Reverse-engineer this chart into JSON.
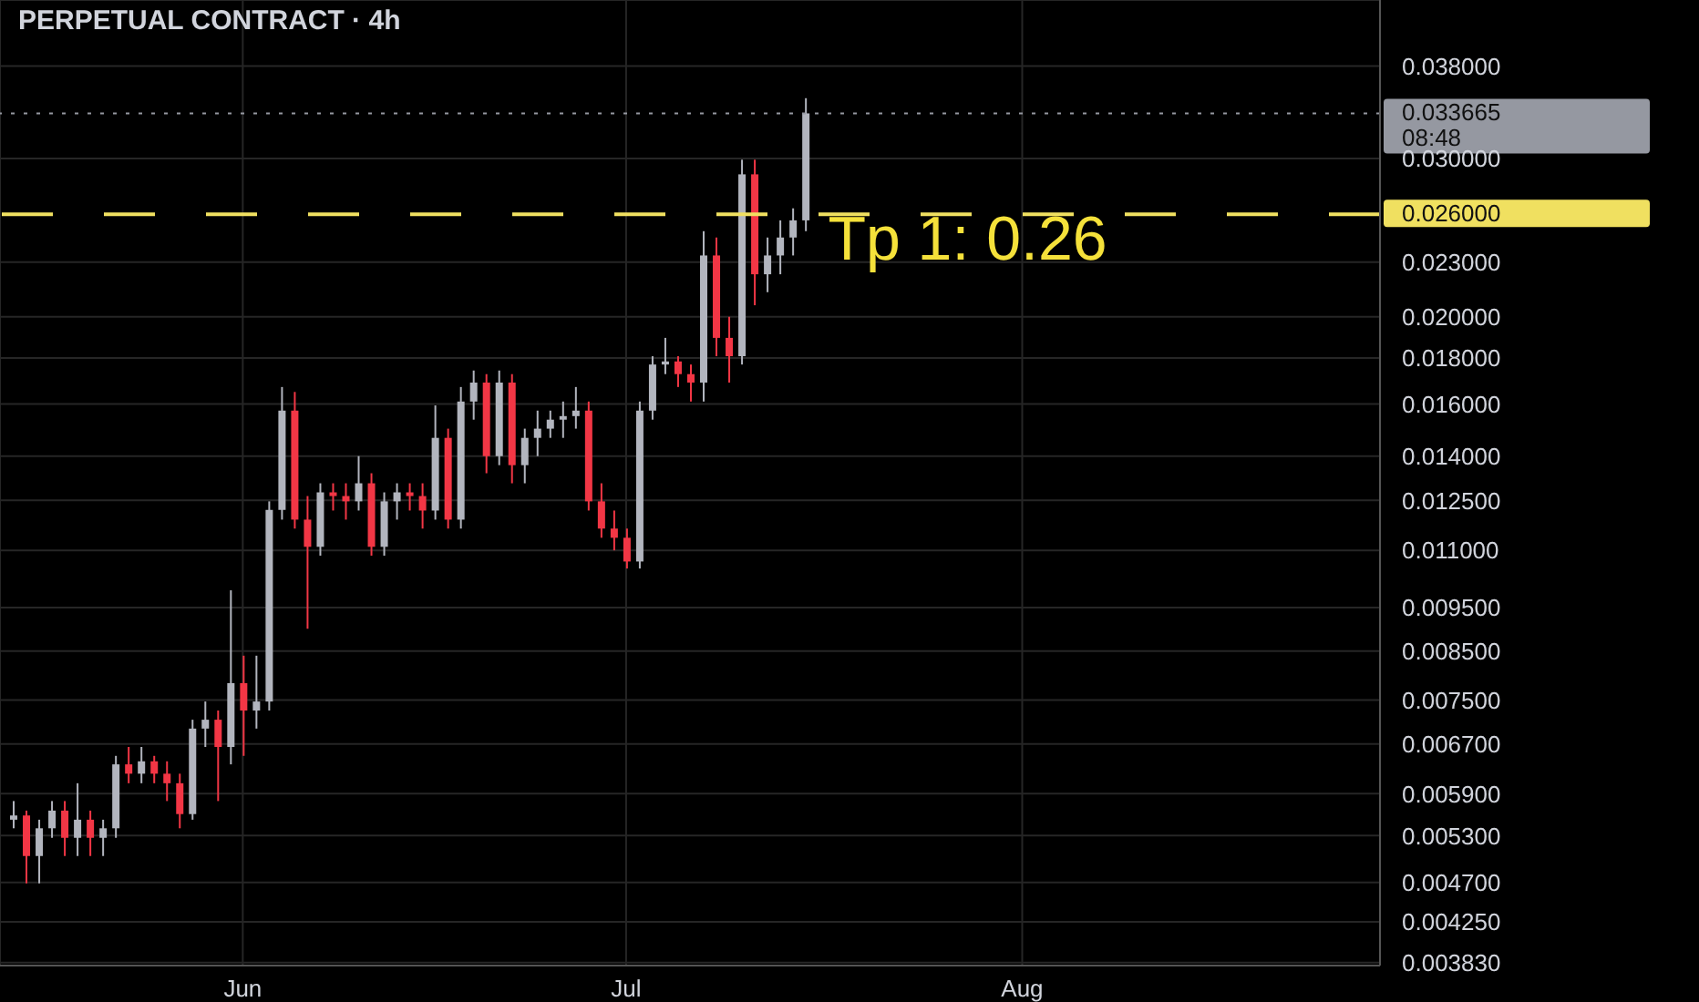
{
  "chart_data": {
    "type": "candlestick",
    "title": "PERPETUAL CONTRACT · 4h",
    "x": [
      "--05-14",
      "--05-15",
      "--05-16",
      "--05-17",
      "--05-18",
      "--05-19",
      "--05-20",
      "--05-21",
      "--05-22",
      "--05-23",
      "--05-24",
      "--05-25",
      "--05-26",
      "--05-27",
      "--05-28",
      "--05-29",
      "--05-30",
      "--05-31",
      "--06-01",
      "--06-02",
      "--06-03",
      "--06-04",
      "--06-05",
      "--06-06",
      "--06-07",
      "--06-08",
      "--06-09",
      "--06-10",
      "--06-11",
      "--06-12",
      "--06-13",
      "--06-14",
      "--06-15",
      "--06-16",
      "--06-17",
      "--06-18",
      "--06-19",
      "--06-20",
      "--06-21",
      "--06-22",
      "--06-23",
      "--06-24",
      "--06-25",
      "--06-26",
      "--06-27",
      "--06-28",
      "--06-29",
      "--06-30",
      "--07-01",
      "--07-02",
      "--07-03",
      "--07-04",
      "--07-05",
      "--07-06",
      "--07-07",
      "--07-08",
      "--07-09",
      "--07-10",
      "--07-11",
      "--07-12",
      "--07-13",
      "--07-14",
      "--07-15"
    ],
    "ohlc": [
      [
        0.00552,
        0.00579,
        0.0054,
        0.00558
      ],
      [
        0.00558,
        0.00565,
        0.00469,
        0.00503
      ],
      [
        0.00503,
        0.00552,
        0.00469,
        0.0054
      ],
      [
        0.0054,
        0.00579,
        0.00527,
        0.00565
      ],
      [
        0.00565,
        0.00579,
        0.00503,
        0.00527
      ],
      [
        0.00527,
        0.00606,
        0.00503,
        0.00552
      ],
      [
        0.00552,
        0.00565,
        0.00503,
        0.00527
      ],
      [
        0.00527,
        0.00552,
        0.00503,
        0.0054
      ],
      [
        0.0054,
        0.0065,
        0.00527,
        0.00636
      ],
      [
        0.00636,
        0.00665,
        0.00606,
        0.00621
      ],
      [
        0.00621,
        0.00665,
        0.00606,
        0.00641
      ],
      [
        0.00641,
        0.0065,
        0.00606,
        0.00621
      ],
      [
        0.00621,
        0.00641,
        0.00579,
        0.00606
      ],
      [
        0.00606,
        0.00621,
        0.0054,
        0.0056
      ],
      [
        0.0056,
        0.00713,
        0.00552,
        0.00697
      ],
      [
        0.00697,
        0.00747,
        0.00665,
        0.00713
      ],
      [
        0.00713,
        0.0073,
        0.00579,
        0.00665
      ],
      [
        0.00665,
        0.00993,
        0.00636,
        0.00783
      ],
      [
        0.00783,
        0.0084,
        0.0065,
        0.0073
      ],
      [
        0.0073,
        0.0084,
        0.00697,
        0.00747
      ],
      [
        0.00747,
        0.01247,
        0.0073,
        0.0122
      ],
      [
        0.0122,
        0.01671,
        0.0119,
        0.01573
      ],
      [
        0.01573,
        0.0165,
        0.01163,
        0.0119
      ],
      [
        0.0119,
        0.01264,
        0.009,
        0.0111
      ],
      [
        0.0111,
        0.01306,
        0.01085,
        0.01276
      ],
      [
        0.01276,
        0.01306,
        0.01218,
        0.01264
      ],
      [
        0.01264,
        0.01306,
        0.0119,
        0.01247
      ],
      [
        0.01247,
        0.014,
        0.01218,
        0.01306
      ],
      [
        0.01306,
        0.0134,
        0.01085,
        0.0111
      ],
      [
        0.0111,
        0.01276,
        0.01085,
        0.01247
      ],
      [
        0.01247,
        0.01306,
        0.0119,
        0.01276
      ],
      [
        0.01276,
        0.01306,
        0.01218,
        0.01264
      ],
      [
        0.01264,
        0.01306,
        0.01163,
        0.01218
      ],
      [
        0.01218,
        0.01594,
        0.0119,
        0.01467
      ],
      [
        0.01467,
        0.01502,
        0.01163,
        0.0119
      ],
      [
        0.0119,
        0.01671,
        0.01163,
        0.0161
      ],
      [
        0.0161,
        0.01743,
        0.01537,
        0.0169
      ],
      [
        0.0169,
        0.01727,
        0.0134,
        0.014
      ],
      [
        0.014,
        0.01743,
        0.01368,
        0.0169
      ],
      [
        0.0169,
        0.01727,
        0.01306,
        0.01368
      ],
      [
        0.01368,
        0.01502,
        0.01306,
        0.01467
      ],
      [
        0.01467,
        0.01573,
        0.014,
        0.01502
      ],
      [
        0.01502,
        0.01573,
        0.01467,
        0.01537
      ],
      [
        0.01537,
        0.0161,
        0.01467,
        0.01551
      ],
      [
        0.01551,
        0.01671,
        0.01502,
        0.01573
      ],
      [
        0.01573,
        0.0161,
        0.01218,
        0.01247
      ],
      [
        0.01247,
        0.01306,
        0.01136,
        0.01163
      ],
      [
        0.01163,
        0.01218,
        0.011,
        0.01136
      ],
      [
        0.01136,
        0.01163,
        0.0105,
        0.01069
      ],
      [
        0.01069,
        0.0161,
        0.0105,
        0.01573
      ],
      [
        0.01573,
        0.01808,
        0.01537,
        0.0177
      ],
      [
        0.0177,
        0.01895,
        0.01727,
        0.01784
      ],
      [
        0.01784,
        0.01808,
        0.01671,
        0.01727
      ],
      [
        0.01727,
        0.0177,
        0.0161,
        0.0169
      ],
      [
        0.0169,
        0.0249,
        0.0161,
        0.0234
      ],
      [
        0.0234,
        0.0245,
        0.01808,
        0.01895
      ],
      [
        0.01895,
        0.02,
        0.0169,
        0.01808
      ],
      [
        0.01808,
        0.0299,
        0.0177,
        0.0288
      ],
      [
        0.0288,
        0.0299,
        0.0206,
        0.0223
      ],
      [
        0.0223,
        0.0245,
        0.0213,
        0.0234
      ],
      [
        0.0234,
        0.0256,
        0.0223,
        0.0245
      ],
      [
        0.0245,
        0.0264,
        0.0234,
        0.0256
      ],
      [
        0.0256,
        0.035,
        0.0249,
        0.033665
      ]
    ],
    "colors": [
      "#b2b5be",
      "#f23645",
      "#b2b5be",
      "#b2b5be",
      "#f23645",
      "#b2b5be",
      "#f23645",
      "#b2b5be",
      "#b2b5be",
      "#f23645",
      "#b2b5be",
      "#f23645",
      "#f23645",
      "#f23645",
      "#b2b5be",
      "#b2b5be",
      "#f23645",
      "#b2b5be",
      "#f23645",
      "#b2b5be",
      "#b2b5be",
      "#b2b5be",
      "#f23645",
      "#f23645",
      "#b2b5be",
      "#f23645",
      "#f23645",
      "#b2b5be",
      "#f23645",
      "#b2b5be",
      "#b2b5be",
      "#f23645",
      "#f23645",
      "#b2b5be",
      "#f23645",
      "#b2b5be",
      "#b2b5be",
      "#f23645",
      "#b2b5be",
      "#f23645",
      "#b2b5be",
      "#b2b5be",
      "#b2b5be",
      "#b2b5be",
      "#b2b5be",
      "#f23645",
      "#f23645",
      "#f23645",
      "#f23645",
      "#b2b5be",
      "#b2b5be",
      "#b2b5be",
      "#f23645",
      "#f23645",
      "#b2b5be",
      "#f23645",
      "#f23645",
      "#b2b5be",
      "#f23645",
      "#b2b5be",
      "#b2b5be",
      "#b2b5be",
      "#b2b5be"
    ],
    "log": true,
    "grid": true,
    "xlim": [
      "--05-13",
      "--08-29"
    ],
    "xticks": [
      {
        "value": "--06-01",
        "label": "Jun"
      },
      {
        "value": "--07-01",
        "label": "Jul"
      },
      {
        "value": "--08-01",
        "label": "Aug"
      }
    ],
    "ylim": [
      0.0038,
      0.045
    ],
    "yticks": [
      {
        "value": 0.038,
        "label": "0.038000"
      },
      {
        "value": 0.03,
        "label": "0.030000"
      },
      {
        "value": 0.023,
        "label": "0.023000"
      },
      {
        "value": 0.02,
        "label": "0.020000"
      },
      {
        "value": 0.018,
        "label": "0.018000"
      },
      {
        "value": 0.016,
        "label": "0.016000"
      },
      {
        "value": 0.014,
        "label": "0.014000"
      },
      {
        "value": 0.0125,
        "label": "0.012500"
      },
      {
        "value": 0.011,
        "label": "0.011000"
      },
      {
        "value": 0.0095,
        "label": "0.009500"
      },
      {
        "value": 0.0085,
        "label": "0.008500"
      },
      {
        "value": 0.0075,
        "label": "0.007500"
      },
      {
        "value": 0.0067,
        "label": "0.006700"
      },
      {
        "value": 0.0059,
        "label": "0.005900"
      },
      {
        "value": 0.0053,
        "label": "0.005300"
      },
      {
        "value": 0.0047,
        "label": "0.004700"
      },
      {
        "value": 0.00425,
        "label": "0.004250"
      },
      {
        "value": 0.00383,
        "label": "0.003830"
      }
    ],
    "ref_lines": [
      {
        "axis": "y",
        "value": 0.033665,
        "label": "0.033665 08:48",
        "line_style": "dotted",
        "color": "#9598a1"
      },
      {
        "axis": "y",
        "value": 0.026,
        "label": "0.026000",
        "line_style": "dashed",
        "color": "#f0e060"
      }
    ],
    "annotations": [
      {
        "text": "Tp 1: 0.26",
        "y": 0.026
      }
    ]
  }
}
